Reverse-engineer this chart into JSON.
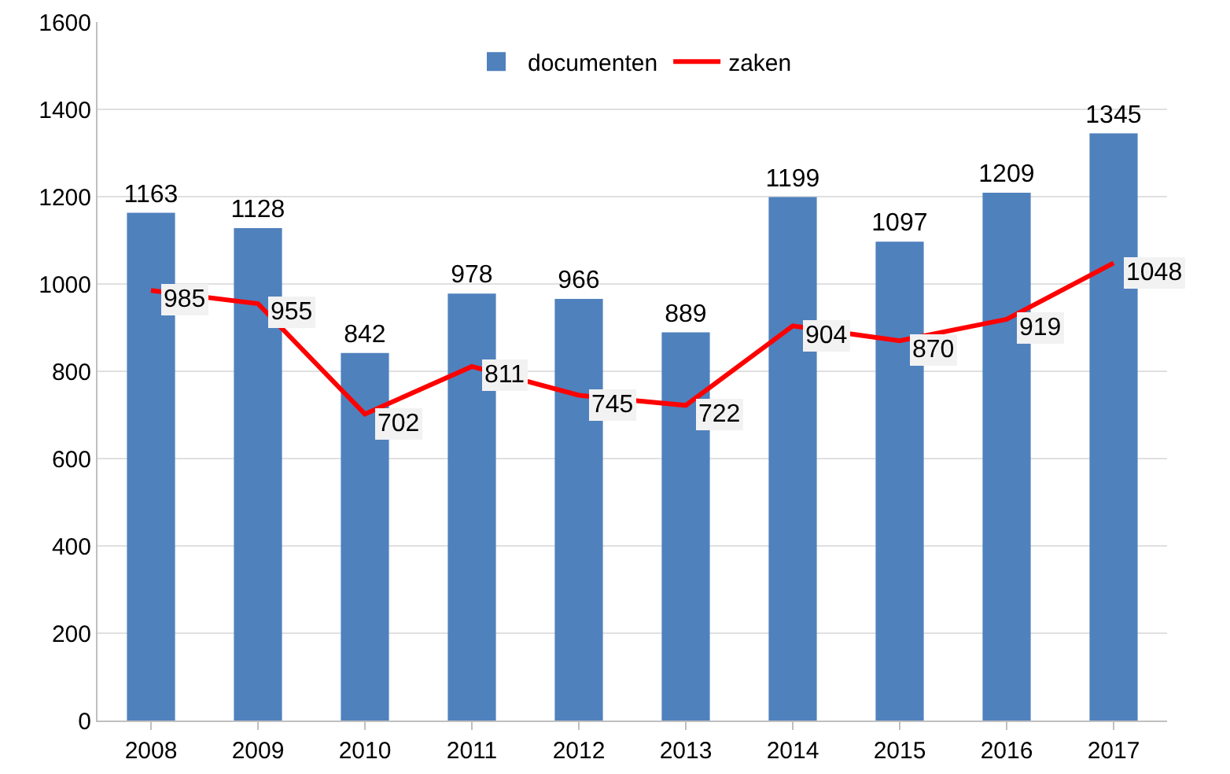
{
  "chart_data": {
    "type": "bar",
    "categories": [
      "2008",
      "2009",
      "2010",
      "2011",
      "2012",
      "2013",
      "2014",
      "2015",
      "2016",
      "2017"
    ],
    "series": [
      {
        "name": "documenten",
        "color": "#4f81bd",
        "values": [
          1163,
          1128,
          842,
          978,
          966,
          889,
          1199,
          1097,
          1209,
          1345
        ]
      },
      {
        "name": "zaken",
        "type": "line",
        "color": "#ff0000",
        "values": [
          985,
          955,
          702,
          811,
          745,
          722,
          904,
          870,
          919,
          1048
        ]
      }
    ],
    "ylim": [
      0,
      1600
    ],
    "yticks": [
      0,
      200,
      400,
      600,
      800,
      1000,
      1200,
      1400,
      1600
    ],
    "grid": "y",
    "legend": "top",
    "data_labels": true,
    "marker": "none",
    "line_style": "solid"
  }
}
